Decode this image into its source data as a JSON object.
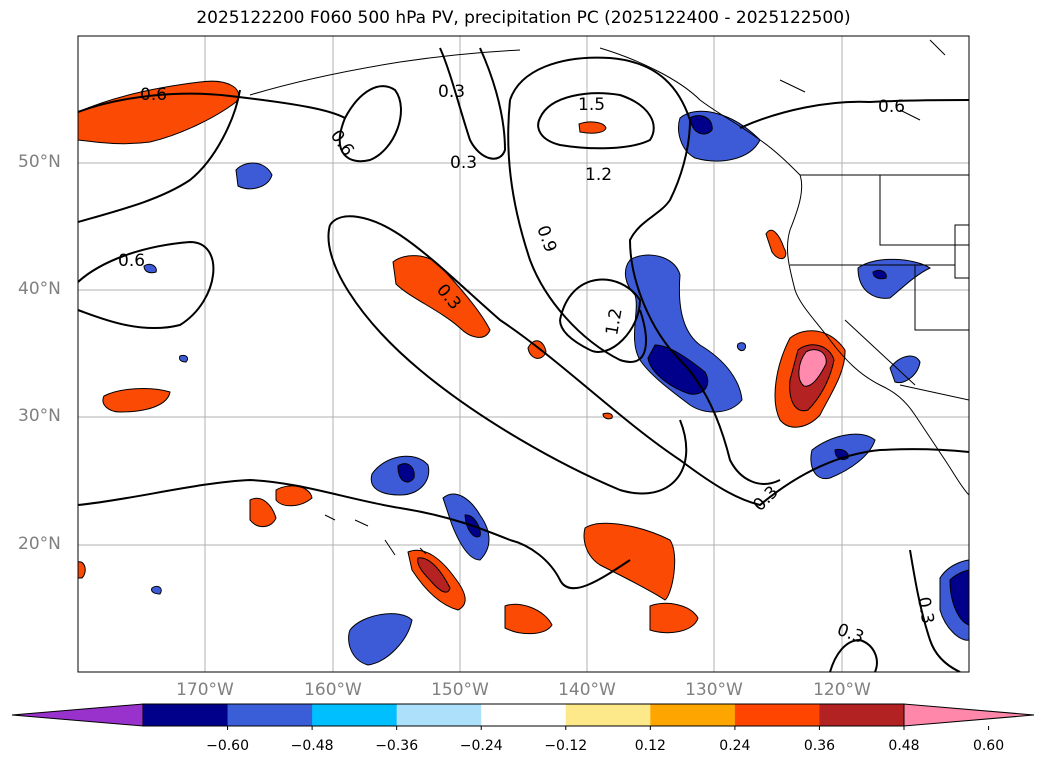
{
  "title": "2025122200 F060 500 hPa PV, precipitation PC (2025122400 - 2025122500)",
  "map": {
    "lat_labels": [
      "50°N",
      "40°N",
      "30°N",
      "20°N"
    ],
    "lon_labels": [
      "170°W",
      "160°W",
      "150°W",
      "140°W",
      "130°W",
      "120°W"
    ],
    "contour_labels": [
      "0.6",
      "0.3",
      "0.6",
      "0.3",
      "1.5",
      "1.2",
      "0.6",
      "0.9",
      "0.6",
      "0.3",
      "1.2",
      "0.3",
      "0.3",
      "0.3"
    ],
    "gridlines": true,
    "contour_color": "#000000",
    "positive_anomaly_colors": [
      "#fde98a",
      "#fba100",
      "#fa4a03",
      "#b42322",
      "#ff8aae"
    ],
    "negative_anomaly_colors": [
      "#b0e2ff",
      "#00b7ff",
      "#3d5bd6",
      "#00008b",
      "#9c3fd0"
    ]
  },
  "colorbar": {
    "ticks": [
      "−0.60",
      "−0.48",
      "−0.36",
      "−0.24",
      "−0.12",
      "0.12",
      "0.24",
      "0.36",
      "0.48",
      "0.60"
    ],
    "colors": [
      "#9932cc",
      "#00008b",
      "#3a5ed8",
      "#00bfff",
      "#ade0fa",
      "#ffffff",
      "#fde98a",
      "#ffa500",
      "#ff4500",
      "#b22222",
      "#ff88aa"
    ]
  }
}
